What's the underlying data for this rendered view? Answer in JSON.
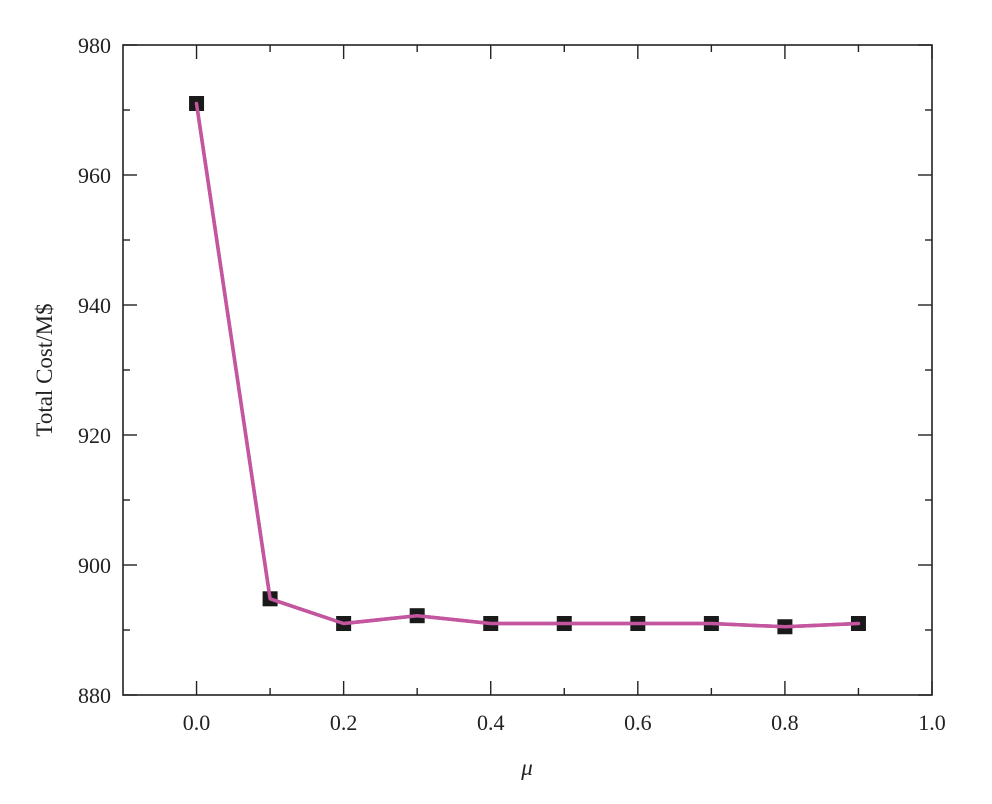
{
  "chart_data": {
    "type": "line",
    "title": "",
    "xlabel": "μ",
    "ylabel": "Total Cost/M$",
    "xlim": [
      -0.1,
      1.0
    ],
    "ylim": [
      880,
      980
    ],
    "x_ticks": [
      "0.0",
      "0.2",
      "0.4",
      "0.6",
      "0.8",
      "1.0"
    ],
    "y_ticks": [
      "880",
      "900",
      "920",
      "940",
      "960",
      "980"
    ],
    "x_tick_values": [
      0.0,
      0.2,
      0.4,
      0.6,
      0.8,
      1.0
    ],
    "y_tick_values": [
      880,
      900,
      920,
      940,
      960,
      980
    ],
    "x_minor_step": 0.1,
    "y_minor_step": 10,
    "grid": false,
    "legend": "none",
    "line_color": "#c4559f",
    "marker_color": "#1a1a1a",
    "marker": "square",
    "series": [
      {
        "x": [
          0.0,
          0.1,
          0.2,
          0.3,
          0.4,
          0.5,
          0.6,
          0.7,
          0.8,
          0.9
        ],
        "values": [
          971,
          894.8,
          891,
          892.2,
          891,
          891,
          891,
          891,
          890.5,
          891
        ]
      }
    ]
  }
}
